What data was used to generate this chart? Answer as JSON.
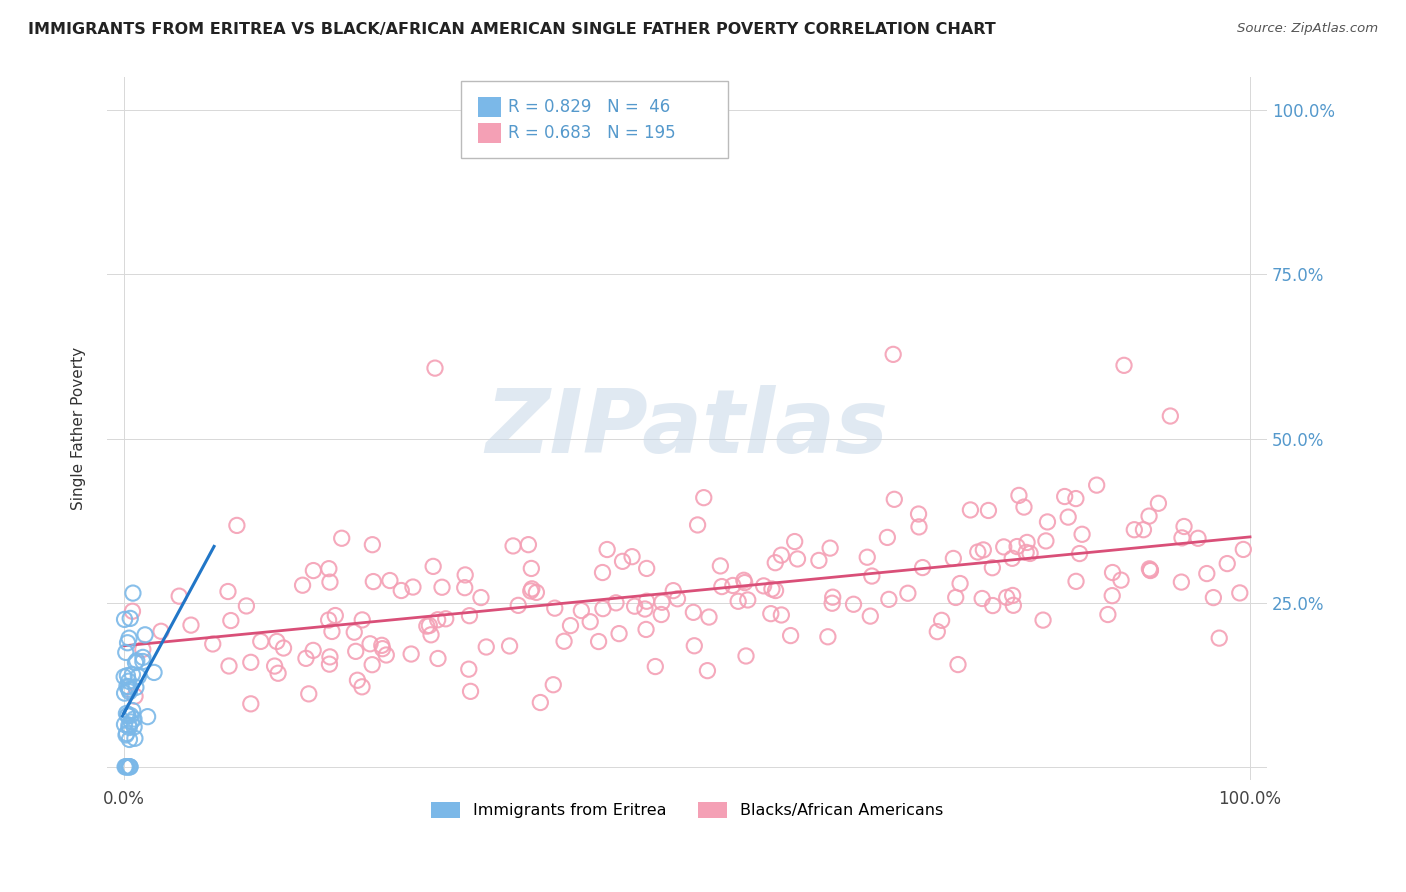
{
  "title": "IMMIGRANTS FROM ERITREA VS BLACK/AFRICAN AMERICAN SINGLE FATHER POVERTY CORRELATION CHART",
  "source": "Source: ZipAtlas.com",
  "ylabel": "Single Father Poverty",
  "blue_R": 0.829,
  "blue_N": 46,
  "pink_R": 0.683,
  "pink_N": 195,
  "blue_color": "#7bb8e8",
  "pink_color": "#f4a0b5",
  "blue_line_color": "#2176c7",
  "pink_line_color": "#d94f78",
  "legend_label_blue": "Immigrants from Eritrea",
  "legend_label_pink": "Blacks/African Americans",
  "background_color": "#ffffff",
  "grid_color": "#d8d8d8",
  "watermark_color": "#c8d8e8",
  "title_color": "#222222",
  "source_color": "#555555",
  "tick_color": "#5599cc",
  "ylabel_color": "#333333"
}
